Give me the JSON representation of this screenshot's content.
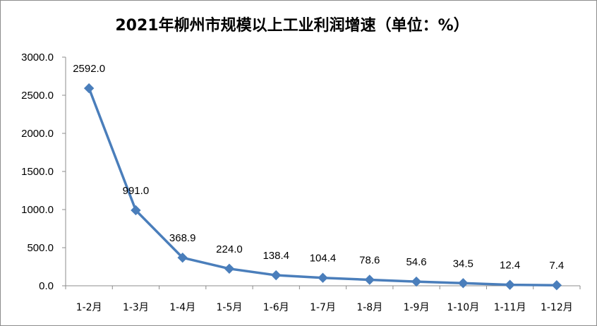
{
  "chart_data": {
    "type": "line",
    "title": "2021年柳州市规模以上工业利润增速（单位：%）",
    "categories": [
      "1-2月",
      "1-3月",
      "1-4月",
      "1-5月",
      "1-6月",
      "1-7月",
      "1-8月",
      "1-9月",
      "1-10月",
      "1-11月",
      "1-12月"
    ],
    "values": [
      2592.0,
      991.0,
      368.9,
      224.0,
      138.4,
      104.4,
      78.6,
      54.6,
      34.5,
      12.4,
      7.4
    ],
    "value_labels": [
      "2592.0",
      "991.0",
      "368.9",
      "224.0",
      "138.4",
      "104.4",
      "78.6",
      "54.6",
      "34.5",
      "12.4",
      "7.4"
    ],
    "y_ticks": [
      "0.0",
      "500.0",
      "1000.0",
      "1500.0",
      "2000.0",
      "2500.0",
      "3000.0"
    ],
    "ylim": [
      0,
      3000
    ],
    "grid": false,
    "legend": "none",
    "line_color": "#4a7ebb",
    "marker": "diamond"
  }
}
